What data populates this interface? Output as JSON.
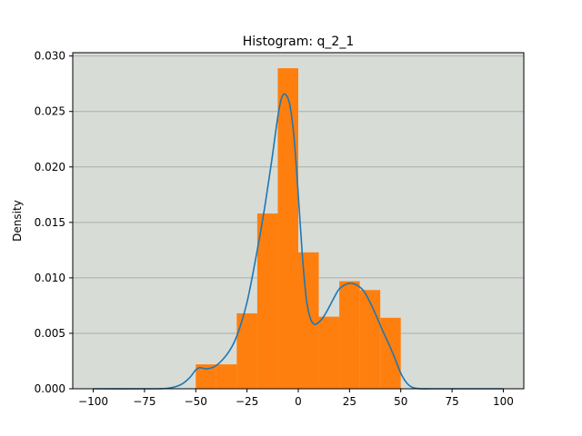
{
  "chart_data": {
    "type": "bar",
    "title": "Histogram: q_2_1",
    "xlabel": "",
    "ylabel": "Density",
    "xlim": [
      -110,
      110
    ],
    "ylim": [
      0,
      0.0303
    ],
    "xticks": [
      -100,
      -75,
      -50,
      -25,
      0,
      25,
      50,
      75,
      100
    ],
    "xtick_labels": [
      "−100",
      "−75",
      "−50",
      "−25",
      "0",
      "25",
      "50",
      "75",
      "100"
    ],
    "yticks": [
      0,
      0.005,
      0.01,
      0.015,
      0.02,
      0.025,
      0.03
    ],
    "ytick_labels": [
      "0.000",
      "0.005",
      "0.010",
      "0.015",
      "0.020",
      "0.025",
      "0.030"
    ],
    "grid": "horizontal",
    "legend": "none",
    "colors": {
      "plot_background": "#d7dcd7",
      "bars": "#ff7f0e",
      "kde": "#1f77b4",
      "grid": "#a9aea9"
    },
    "histogram": {
      "bin_edges": [
        -50,
        -40,
        -30,
        -20,
        -10,
        0,
        10,
        20,
        30,
        40,
        50
      ],
      "densities": [
        0.0022,
        0.0022,
        0.0068,
        0.0158,
        0.0289,
        0.0123,
        0.0065,
        0.0097,
        0.0089,
        0.0064
      ]
    },
    "kde": {
      "x": [
        -100,
        -70,
        -62,
        -57,
        -53,
        -50,
        -48,
        -45,
        -42,
        -40,
        -37,
        -34,
        -31,
        -28,
        -25,
        -22,
        -19,
        -16,
        -13,
        -10,
        -8,
        -6,
        -4,
        -2,
        0,
        2,
        4,
        6,
        8,
        10,
        12,
        14,
        16,
        18,
        20,
        23,
        26,
        29,
        32,
        35,
        38,
        41,
        44,
        47,
        50,
        53,
        56,
        60,
        65,
        75,
        100
      ],
      "y": [
        0,
        0,
        0.0001,
        0.0004,
        0.001,
        0.0017,
        0.0019,
        0.0018,
        0.0019,
        0.0021,
        0.0026,
        0.0033,
        0.0043,
        0.0058,
        0.0078,
        0.0105,
        0.0135,
        0.0168,
        0.0205,
        0.0245,
        0.0263,
        0.0265,
        0.0255,
        0.0225,
        0.0175,
        0.012,
        0.008,
        0.0063,
        0.0058,
        0.006,
        0.0064,
        0.007,
        0.0077,
        0.0084,
        0.009,
        0.0094,
        0.0095,
        0.0093,
        0.0088,
        0.0078,
        0.0066,
        0.0053,
        0.0041,
        0.0028,
        0.0014,
        0.0005,
        0.0001,
        0,
        0,
        0,
        0
      ]
    }
  }
}
